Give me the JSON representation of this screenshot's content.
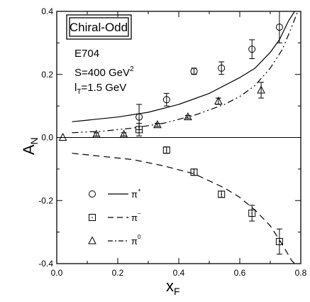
{
  "chart_data": {
    "type": "scatter",
    "title": "Chiral-Odd",
    "xlabel": "x",
    "xlabel_sub": "F",
    "ylabel": "A",
    "ylabel_sub": "N",
    "xlim": [
      0.0,
      0.8
    ],
    "ylim": [
      -0.4,
      0.4
    ],
    "x_ticks": [
      "0.0",
      "0.2",
      "0.4",
      "0.6",
      "0.8"
    ],
    "y_ticks": [
      "-0.4",
      "-0.2",
      "0.0",
      "0.2",
      "0.4"
    ],
    "annotations": {
      "experiment": "E704",
      "energy_prefix": "S=400 GeV",
      "energy_sup": "2",
      "lt_main": "l",
      "lt_sub": "T",
      "lt_value": "=1.5 GeV"
    },
    "legend_position": "bottom-left",
    "series": [
      {
        "name": "π",
        "superscript": "+",
        "marker": "circle",
        "line_style": "solid",
        "points": [
          {
            "x": 0.27,
            "y": 0.065,
            "err": 0.04
          },
          {
            "x": 0.36,
            "y": 0.12,
            "err": 0.02
          },
          {
            "x": 0.45,
            "y": 0.21,
            "err": 0.01
          },
          {
            "x": 0.54,
            "y": 0.22,
            "err": 0.02
          },
          {
            "x": 0.64,
            "y": 0.28,
            "err": 0.03
          },
          {
            "x": 0.73,
            "y": 0.35,
            "err": 0.05
          }
        ],
        "curve": [
          {
            "x": 0.05,
            "y": 0.05
          },
          {
            "x": 0.1,
            "y": 0.055
          },
          {
            "x": 0.2,
            "y": 0.065
          },
          {
            "x": 0.3,
            "y": 0.08
          },
          {
            "x": 0.4,
            "y": 0.105
          },
          {
            "x": 0.5,
            "y": 0.14
          },
          {
            "x": 0.6,
            "y": 0.19
          },
          {
            "x": 0.65,
            "y": 0.22
          },
          {
            "x": 0.7,
            "y": 0.27
          },
          {
            "x": 0.73,
            "y": 0.31
          },
          {
            "x": 0.76,
            "y": 0.37
          },
          {
            "x": 0.78,
            "y": 0.4
          }
        ]
      },
      {
        "name": "π",
        "superscript": "−",
        "marker": "square",
        "line_style": "dashed",
        "points": [
          {
            "x": 0.27,
            "y": 0.025,
            "err": 0.02
          },
          {
            "x": 0.36,
            "y": -0.04,
            "err": 0.01
          },
          {
            "x": 0.45,
            "y": -0.11,
            "err": 0.01
          },
          {
            "x": 0.54,
            "y": -0.18,
            "err": 0.01
          },
          {
            "x": 0.64,
            "y": -0.24,
            "err": 0.025
          },
          {
            "x": 0.73,
            "y": -0.33,
            "err": 0.04
          }
        ],
        "curve": [
          {
            "x": 0.05,
            "y": -0.05
          },
          {
            "x": 0.15,
            "y": -0.06
          },
          {
            "x": 0.25,
            "y": -0.07
          },
          {
            "x": 0.35,
            "y": -0.09
          },
          {
            "x": 0.45,
            "y": -0.115
          },
          {
            "x": 0.55,
            "y": -0.16
          },
          {
            "x": 0.6,
            "y": -0.19
          },
          {
            "x": 0.65,
            "y": -0.23
          },
          {
            "x": 0.7,
            "y": -0.28
          },
          {
            "x": 0.74,
            "y": -0.34
          },
          {
            "x": 0.77,
            "y": -0.39
          },
          {
            "x": 0.78,
            "y": -0.4
          }
        ]
      },
      {
        "name": "π",
        "superscript": "0",
        "marker": "triangle",
        "line_style": "dash-dot",
        "points": [
          {
            "x": 0.02,
            "y": 0.0,
            "err": 0.0
          },
          {
            "x": 0.13,
            "y": 0.01,
            "err": 0.005
          },
          {
            "x": 0.22,
            "y": 0.01,
            "err": 0.005
          },
          {
            "x": 0.33,
            "y": 0.04,
            "err": 0.005
          },
          {
            "x": 0.43,
            "y": 0.065,
            "err": 0.005
          },
          {
            "x": 0.53,
            "y": 0.115,
            "err": 0.01
          },
          {
            "x": 0.67,
            "y": 0.15,
            "err": 0.025
          }
        ],
        "curve": [
          {
            "x": 0.05,
            "y": 0.015
          },
          {
            "x": 0.15,
            "y": 0.02
          },
          {
            "x": 0.25,
            "y": 0.03
          },
          {
            "x": 0.35,
            "y": 0.045
          },
          {
            "x": 0.45,
            "y": 0.07
          },
          {
            "x": 0.55,
            "y": 0.105
          },
          {
            "x": 0.6,
            "y": 0.13
          },
          {
            "x": 0.65,
            "y": 0.165
          },
          {
            "x": 0.7,
            "y": 0.22
          },
          {
            "x": 0.74,
            "y": 0.28
          },
          {
            "x": 0.77,
            "y": 0.35
          },
          {
            "x": 0.79,
            "y": 0.4
          }
        ]
      }
    ]
  }
}
